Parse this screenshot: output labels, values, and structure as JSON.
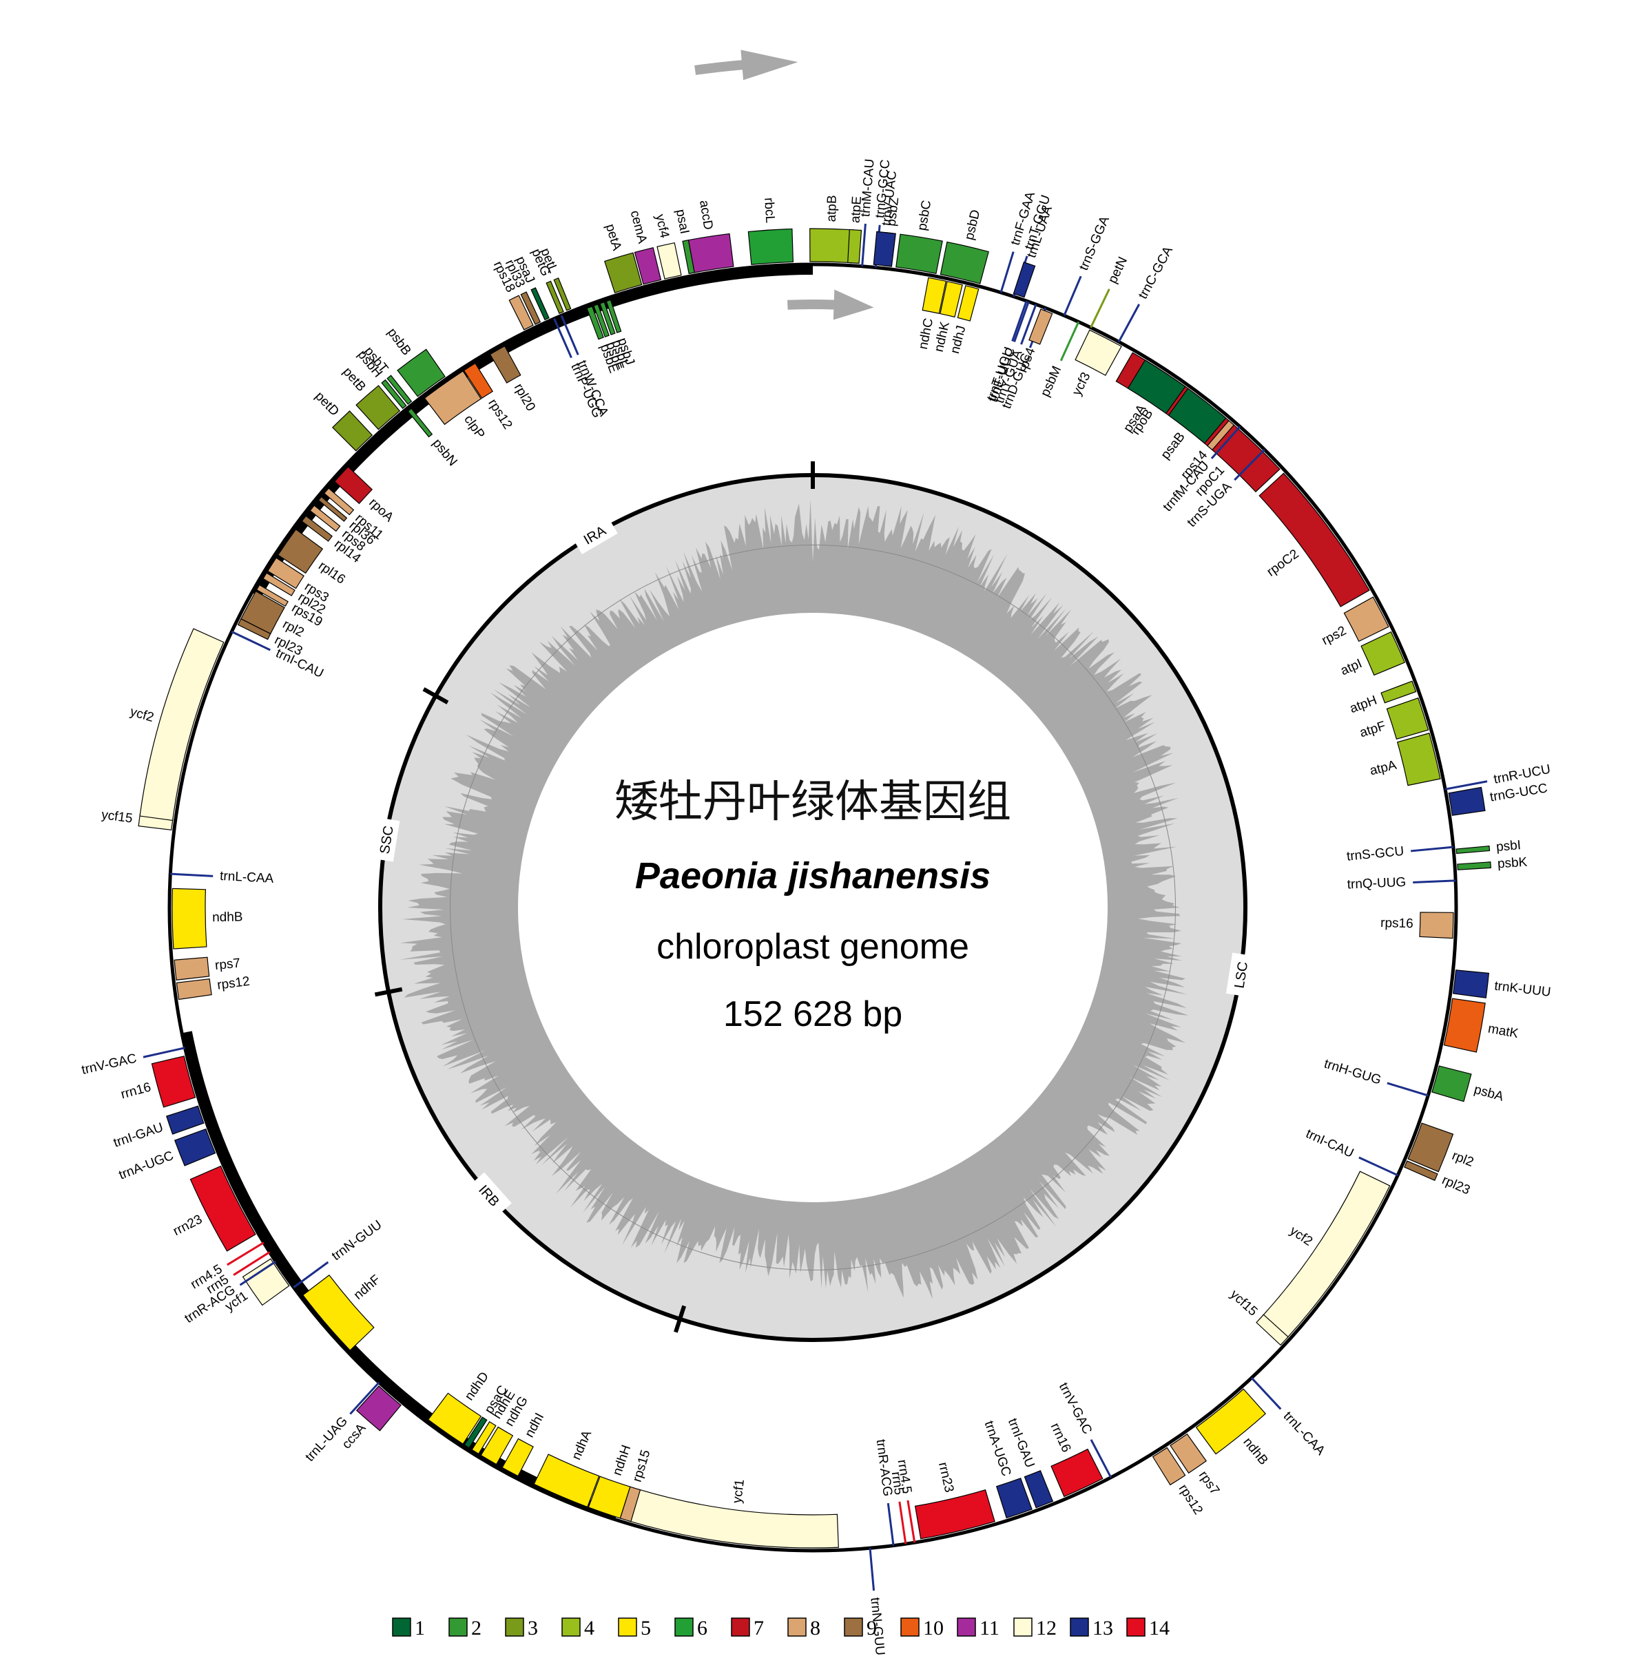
{
  "title": {
    "chinese": "矮牡丹叶绿体基因组",
    "species": "Paeonia jishanensis",
    "subtitle": "chloroplast genome",
    "size": "152 628 bp"
  },
  "genome_length_bp": 152628,
  "colors": {
    "1": "#006633",
    "2": "#339933",
    "3": "#7a9a1a",
    "4": "#99bf1c",
    "5": "#ffe600",
    "6": "#22a035",
    "7": "#c0141e",
    "8": "#dba572",
    "9": "#9c7040",
    "10": "#eb5d12",
    "11": "#a52b9c",
    "12": "#fffbd6",
    "13": "#1c2f8a",
    "14": "#e30d1f"
  },
  "legend": [
    "1",
    "2",
    "3",
    "4",
    "5",
    "6",
    "7",
    "8",
    "9",
    "10",
    "11",
    "12",
    "13",
    "14"
  ],
  "regions": [
    {
      "label": "LSC",
      "start": 0,
      "end": 83900
    },
    {
      "label": "IRB",
      "start": 83900,
      "end": 109700
    },
    {
      "label": "SSC",
      "start": 109700,
      "end": 126900
    },
    {
      "label": "IRA",
      "start": 126900,
      "end": 152628
    }
  ],
  "genes": [
    {
      "name": "trnG-GCC",
      "a": 5.6,
      "span": 0.3,
      "cat": "13",
      "strand": "out",
      "lbl": true
    },
    {
      "name": "psbZ",
      "a": 6.6,
      "span": 0.8,
      "cat": "2",
      "strand": "out",
      "lbl": true
    },
    {
      "name": "psbC",
      "a": 9.2,
      "span": 3.6,
      "cat": "2",
      "strand": "out"
    },
    {
      "name": "psbD",
      "a": 13.2,
      "span": 3.6,
      "cat": "2",
      "strand": "out"
    },
    {
      "name": "trnT-GGU",
      "a": 18.2,
      "span": 0.3,
      "cat": "13",
      "strand": "out",
      "lbl": true
    },
    {
      "name": "petN",
      "a": 25.6,
      "span": 0.3,
      "cat": "3",
      "strand": "out",
      "lbl": true
    },
    {
      "name": "trnC-GCA",
      "a": 28.4,
      "span": 0.3,
      "cat": "13",
      "strand": "out",
      "lbl": true
    },
    {
      "name": "trnE-UUC",
      "a": 19.6,
      "span": 0.3,
      "cat": "13",
      "strand": "in",
      "lbl": true
    },
    {
      "name": "trnY-GUA",
      "a": 20.3,
      "span": 0.3,
      "cat": "13",
      "strand": "in",
      "lbl": true
    },
    {
      "name": "trnD-GUC",
      "a": 21.2,
      "span": 0.3,
      "cat": "13",
      "strand": "in",
      "lbl": true
    },
    {
      "name": "psbM",
      "a": 24.4,
      "span": 0.3,
      "cat": "2",
      "strand": "in",
      "lbl": true
    },
    {
      "name": "rpoB",
      "a": 34.2,
      "span": 8.5,
      "cat": "7",
      "strand": "in"
    },
    {
      "name": "rpoC1",
      "a": 43.0,
      "span": 7.6,
      "cat": "7",
      "strand": "in"
    },
    {
      "name": "rpoC2",
      "a": 53.8,
      "span": 13.0,
      "cat": "7",
      "strand": "in"
    },
    {
      "name": "rps2",
      "a": 62.5,
      "span": 3.0,
      "cat": "8",
      "strand": "in"
    },
    {
      "name": "atpI",
      "a": 66.0,
      "span": 3.0,
      "cat": "4",
      "strand": "in"
    },
    {
      "name": "atpH",
      "a": 69.8,
      "span": 1.0,
      "cat": "4",
      "strand": "in"
    },
    {
      "name": "atpF",
      "a": 72.4,
      "span": 3.0,
      "cat": "4",
      "strand": "in"
    },
    {
      "name": "atpA",
      "a": 76.3,
      "span": 4.2,
      "cat": "4",
      "strand": "in"
    },
    {
      "name": "trnR-UCU",
      "a": 79.4,
      "span": 0.3,
      "cat": "13",
      "strand": "out",
      "lbl": true
    },
    {
      "name": "trnG-UCC",
      "a": 80.8,
      "span": 2.0,
      "cat": "13",
      "strand": "out"
    },
    {
      "name": "trnS-GCU",
      "a": 84.6,
      "span": 0.3,
      "cat": "13",
      "strand": "in",
      "lbl": true
    },
    {
      "name": "psbI",
      "a": 85.0,
      "span": 0.4,
      "cat": "2",
      "strand": "out",
      "lbl": true
    },
    {
      "name": "psbK",
      "a": 86.4,
      "span": 0.5,
      "cat": "2",
      "strand": "out",
      "lbl": true
    },
    {
      "name": "trnQ-UUG",
      "a": 87.6,
      "span": 0.3,
      "cat": "13",
      "strand": "in",
      "lbl": true
    },
    {
      "name": "rps16",
      "a": 91.6,
      "span": 2.3,
      "cat": "8",
      "strand": "in"
    },
    {
      "name": "trnK-UUU",
      "a": 96.6,
      "span": 2.1,
      "cat": "13",
      "strand": "out",
      "lbl": true
    },
    {
      "name": "matK",
      "a": 100.2,
      "span": 4.2,
      "cat": "10",
      "strand": "out",
      "lbl": true
    },
    {
      "name": "psbA",
      "a": 105.4,
      "span": 2.4,
      "cat": "2",
      "strand": "out"
    },
    {
      "name": "trnH-GUG",
      "a": 107.0,
      "span": 0.3,
      "cat": "13",
      "strand": "in",
      "lbl": true
    },
    {
      "name": "rpl2",
      "a": 111.2,
      "span": 3.4,
      "cat": "9",
      "strand": "out"
    },
    {
      "name": "rpl23",
      "a": 113.4,
      "span": 0.6,
      "cat": "9",
      "strand": "out",
      "lbl": true
    },
    {
      "name": "trnI-CAU",
      "a": 114.6,
      "span": 0.3,
      "cat": "13",
      "strand": "in",
      "lbl": true
    },
    {
      "name": "ycf2",
      "a": 124.0,
      "span": 16.5,
      "cat": "12",
      "strand": "in"
    },
    {
      "name": "ycf15",
      "a": 132.6,
      "span": 1.0,
      "cat": "12",
      "strand": "in"
    },
    {
      "name": "trnL-CAA",
      "a": 137.0,
      "span": 0.3,
      "cat": "13",
      "strand": "out",
      "lbl": true
    },
    {
      "name": "ndhB",
      "a": 140.9,
      "span": 5.4,
      "cat": "5",
      "strand": "out"
    },
    {
      "name": "rps7",
      "a": 145.5,
      "span": 1.8,
      "cat": "8",
      "strand": "out"
    },
    {
      "name": "rps12",
      "a": 147.5,
      "span": 1.5,
      "cat": "8",
      "strand": "out"
    },
    {
      "name": "trnV-GAC",
      "a": 152.4,
      "span": 0.3,
      "cat": "13",
      "strand": "in",
      "lbl": true
    },
    {
      "name": "rrn16",
      "a": 155.0,
      "span": 3.8,
      "cat": "14",
      "strand": "in"
    },
    {
      "name": "trnI-GAU",
      "a": 158.8,
      "span": 1.6,
      "cat": "13",
      "strand": "in"
    },
    {
      "name": "trnA-UGC",
      "a": 161.2,
      "span": 2.4,
      "cat": "13",
      "strand": "in"
    },
    {
      "name": "rrn23",
      "a": 166.9,
      "span": 6.8,
      "cat": "14",
      "strand": "in"
    },
    {
      "name": "rrn4.5",
      "a": 170.9,
      "span": 0.3,
      "cat": "14",
      "strand": "in",
      "lbl": true
    },
    {
      "name": "rrn5",
      "a": 171.7,
      "span": 0.3,
      "cat": "14",
      "strand": "in",
      "lbl": true
    },
    {
      "name": "trnR-ACG",
      "a": 172.8,
      "span": 0.3,
      "cat": "13",
      "strand": "in",
      "lbl": true
    },
    {
      "name": "trnN-GUU",
      "a": 174.9,
      "span": 0.3,
      "cat": "13",
      "strand": "out",
      "lbl": true
    },
    {
      "name": "ycf1",
      "a": 187.2,
      "span": 19.0,
      "cat": "12",
      "strand": "in"
    },
    {
      "name": "rps15",
      "a": 197.0,
      "span": 1.0,
      "cat": "8",
      "strand": "in"
    },
    {
      "name": "ndhH",
      "a": 199.0,
      "span": 3.0,
      "cat": "5",
      "strand": "in"
    },
    {
      "name": "ndhA",
      "a": 203.2,
      "span": 5.2,
      "cat": "5",
      "strand": "in"
    },
    {
      "name": "ndhI",
      "a": 208.2,
      "span": 1.6,
      "cat": "5",
      "strand": "in"
    },
    {
      "name": "ndhG",
      "a": 210.4,
      "span": 1.6,
      "cat": "5",
      "strand": "in"
    },
    {
      "name": "ndhE",
      "a": 211.8,
      "span": 0.7,
      "cat": "5",
      "strand": "in"
    },
    {
      "name": "psaC",
      "a": 212.7,
      "span": 0.5,
      "cat": "1",
      "strand": "in"
    },
    {
      "name": "ndhD",
      "a": 215.0,
      "span": 3.8,
      "cat": "5",
      "strand": "in"
    },
    {
      "name": "ccsA",
      "a": 220.9,
      "span": 2.6,
      "cat": "11",
      "strand": "out"
    },
    {
      "name": "trnL-UAG",
      "a": 222.4,
      "span": 0.3,
      "cat": "13",
      "strand": "out",
      "lbl": true
    },
    {
      "name": "ndhF",
      "a": 229.5,
      "span": 6.5,
      "cat": "5",
      "strand": "in"
    },
    {
      "name": "trnN-GUU",
      "a": 233.8,
      "span": 0.3,
      "cat": "13",
      "strand": "in",
      "lbl": true
    },
    {
      "name": "ycf1",
      "a": 235.6,
      "span": 2.9,
      "cat": "12",
      "strand": "out"
    },
    {
      "name": "trnR-ACG",
      "a": 236.6,
      "span": 0.3,
      "cat": "13",
      "strand": "out",
      "lbl": true
    },
    {
      "name": "rrn5",
      "a": 237.6,
      "span": 0.3,
      "cat": "14",
      "strand": "out",
      "lbl": true
    },
    {
      "name": "rrn4.5",
      "a": 238.6,
      "span": 0.3,
      "cat": "14",
      "strand": "out",
      "lbl": true
    },
    {
      "name": "rrn23",
      "a": 243.0,
      "span": 6.8,
      "cat": "14",
      "strand": "out"
    },
    {
      "name": "trnA-UGC",
      "a": 248.8,
      "span": 2.3,
      "cat": "13",
      "strand": "out"
    },
    {
      "name": "trnI-GAU",
      "a": 251.3,
      "span": 1.6,
      "cat": "13",
      "strand": "out"
    },
    {
      "name": "rrn16",
      "a": 254.8,
      "span": 3.8,
      "cat": "14",
      "strand": "out"
    },
    {
      "name": "trnV-GAC",
      "a": 257.4,
      "span": 0.3,
      "cat": "13",
      "strand": "out",
      "lbl": true
    },
    {
      "name": "rps12",
      "a": 262.5,
      "span": 1.5,
      "cat": "8",
      "strand": "in"
    },
    {
      "name": "rps7",
      "a": 264.4,
      "span": 1.8,
      "cat": "8",
      "strand": "in"
    },
    {
      "name": "ndhB",
      "a": 269.0,
      "span": 5.4,
      "cat": "5",
      "strand": "in"
    },
    {
      "name": "trnL-CAA",
      "a": 273.0,
      "span": 0.3,
      "cat": "13",
      "strand": "in",
      "lbl": true
    },
    {
      "name": "ycf15",
      "a": 277.4,
      "span": 1.0,
      "cat": "12",
      "strand": "out"
    },
    {
      "name": "ycf2",
      "a": 286.0,
      "span": 16.5,
      "cat": "12",
      "strand": "out"
    },
    {
      "name": "trnI-CAU",
      "a": 295.4,
      "span": 0.3,
      "cat": "13",
      "strand": "in",
      "lbl": true
    },
    {
      "name": "rpl23",
      "a": 296.5,
      "span": 0.6,
      "cat": "9",
      "strand": "in",
      "lbl": true
    },
    {
      "name": "rpl2",
      "a": 298.2,
      "span": 2.8,
      "cat": "9",
      "strand": "in",
      "lbl": true
    },
    {
      "name": "rps19",
      "a": 300.0,
      "span": 0.5,
      "cat": "8",
      "strand": "in",
      "lbl": true
    },
    {
      "name": "rpl22",
      "a": 301.2,
      "span": 0.6,
      "cat": "8",
      "strand": "in",
      "lbl": true
    },
    {
      "name": "rps3",
      "a": 302.4,
      "span": 1.4,
      "cat": "8",
      "strand": "in",
      "lbl": true
    },
    {
      "name": "rpl16",
      "a": 304.8,
      "span": 2.8,
      "cat": "9",
      "strand": "in"
    },
    {
      "name": "rpl14",
      "a": 307.4,
      "span": 0.6,
      "cat": "9",
      "strand": "in",
      "lbl": true
    },
    {
      "name": "rps8",
      "a": 308.6,
      "span": 0.6,
      "cat": "8",
      "strand": "in",
      "lbl": true
    },
    {
      "name": "rpl36",
      "a": 309.7,
      "span": 0.4,
      "cat": "9",
      "strand": "in",
      "lbl": true
    },
    {
      "name": "rps11",
      "a": 310.6,
      "span": 0.6,
      "cat": "8",
      "strand": "in",
      "lbl": true
    },
    {
      "name": "rpoA",
      "a": 312.6,
      "span": 1.8,
      "cat": "7",
      "strand": "in"
    },
    {
      "name": "petD",
      "a": 316.0,
      "span": 2.0,
      "cat": "3",
      "strand": "out"
    },
    {
      "name": "petB",
      "a": 319.0,
      "span": 2.5,
      "cat": "3",
      "strand": "out"
    },
    {
      "name": "psbH",
      "a": 320.8,
      "span": 0.4,
      "cat": "2",
      "strand": "out",
      "lbl": true
    },
    {
      "name": "psbT",
      "a": 321.4,
      "span": 0.4,
      "cat": "2",
      "strand": "out",
      "lbl": true
    },
    {
      "name": "psbB",
      "a": 323.8,
      "span": 3.0,
      "cat": "2",
      "strand": "out"
    },
    {
      "name": "psbN",
      "a": 321.0,
      "span": 0.4,
      "cat": "2",
      "strand": "in",
      "lbl": true
    },
    {
      "name": "clpP",
      "a": 324.8,
      "span": 4.2,
      "cat": "8",
      "strand": "in"
    },
    {
      "name": "rps12",
      "a": 327.6,
      "span": 1.2,
      "cat": "10",
      "strand": "in"
    },
    {
      "name": "rpl20",
      "a": 330.5,
      "span": 1.5,
      "cat": "9",
      "strand": "in"
    },
    {
      "name": "rps18",
      "a": 333.9,
      "span": 0.9,
      "cat": "8",
      "strand": "out",
      "lbl": true
    },
    {
      "name": "rpl33",
      "a": 334.8,
      "span": 0.5,
      "cat": "9",
      "strand": "out",
      "lbl": true
    },
    {
      "name": "psaJ",
      "a": 335.7,
      "span": 0.4,
      "cat": "1",
      "strand": "out",
      "lbl": true
    },
    {
      "name": "petG",
      "a": 337.1,
      "span": 0.4,
      "cat": "3",
      "strand": "out",
      "lbl": true
    },
    {
      "name": "petL",
      "a": 337.8,
      "span": 0.4,
      "cat": "3",
      "strand": "out",
      "lbl": true
    },
    {
      "name": "trnP-UGG",
      "a": 336.3,
      "span": 0.3,
      "cat": "13",
      "strand": "in",
      "lbl": true
    },
    {
      "name": "trnW-CCA",
      "a": 337.0,
      "span": 0.3,
      "cat": "13",
      "strand": "in",
      "lbl": true
    },
    {
      "name": "psbE",
      "a": 339.6,
      "span": 0.5,
      "cat": "2",
      "strand": "in",
      "lbl": true
    },
    {
      "name": "psbF",
      "a": 340.2,
      "span": 0.4,
      "cat": "2",
      "strand": "in",
      "lbl": true
    },
    {
      "name": "psbL",
      "a": 340.8,
      "span": 0.4,
      "cat": "2",
      "strand": "in",
      "lbl": true
    },
    {
      "name": "psbJ",
      "a": 341.4,
      "span": 0.4,
      "cat": "2",
      "strand": "in",
      "lbl": true
    },
    {
      "name": "petA",
      "a": 343.4,
      "span": 2.5,
      "cat": "3",
      "strand": "out"
    },
    {
      "name": "cemA",
      "a": 345.6,
      "span": 1.6,
      "cat": "11",
      "strand": "out"
    },
    {
      "name": "ycf4",
      "a": 347.5,
      "span": 1.5,
      "cat": "12",
      "strand": "out"
    },
    {
      "name": "psaI",
      "a": 349.2,
      "span": 0.5,
      "cat": "2",
      "strand": "out",
      "lbl": true
    },
    {
      "name": "accD",
      "a": 351.2,
      "span": 3.5,
      "cat": "11",
      "strand": "out"
    },
    {
      "name": "rbcL",
      "a": 356.4,
      "span": 3.7,
      "cat": "6",
      "strand": "out"
    },
    {
      "name": "atpB",
      "a": 1.6,
      "span": 3.7,
      "cat": "4",
      "strand": "out"
    },
    {
      "name": "atpE",
      "a": 3.6,
      "span": 1.0,
      "cat": "4",
      "strand": "out"
    },
    {
      "name": "trnM-CAU",
      "a": 4.4,
      "span": 0.3,
      "cat": "13",
      "strand": "out",
      "lbl": true
    },
    {
      "name": "trnV-UAC",
      "a": 6.2,
      "span": 1.6,
      "cat": "13",
      "strand": "out"
    },
    {
      "name": "ndhC",
      "a": 11.2,
      "span": 1.6,
      "cat": "5",
      "strand": "in"
    },
    {
      "name": "ndhK",
      "a": 12.8,
      "span": 1.4,
      "cat": "5",
      "strand": "in"
    },
    {
      "name": "ndhJ",
      "a": 14.4,
      "span": 1.2,
      "cat": "5",
      "strand": "in"
    },
    {
      "name": "trnF-GAA",
      "a": 17.0,
      "span": 0.3,
      "cat": "13",
      "strand": "out",
      "lbl": true
    },
    {
      "name": "trnL-UAA",
      "a": 18.6,
      "span": 1.0,
      "cat": "13",
      "strand": "out"
    },
    {
      "name": "trnT-UGU",
      "a": 19.4,
      "span": 0.3,
      "cat": "13",
      "strand": "in",
      "lbl": true
    },
    {
      "name": "rps4",
      "a": 21.4,
      "span": 1.1,
      "cat": "8",
      "strand": "in"
    },
    {
      "name": "trnS-GGA",
      "a": 23.0,
      "span": 0.3,
      "cat": "13",
      "strand": "out",
      "lbl": true
    },
    {
      "name": "ycf3",
      "a": 27.2,
      "span": 3.2,
      "cat": "12",
      "strand": "in"
    },
    {
      "name": "psaA",
      "a": 33.4,
      "span": 4.3,
      "cat": "1",
      "strand": "in"
    },
    {
      "name": "psaB",
      "a": 38.0,
      "span": 4.3,
      "cat": "1",
      "strand": "in"
    },
    {
      "name": "rps14",
      "a": 40.8,
      "span": 0.6,
      "cat": "8",
      "strand": "in",
      "lbl": true
    },
    {
      "name": "trnfM-CAU",
      "a": 41.6,
      "span": 0.3,
      "cat": "13",
      "strand": "in",
      "lbl": true
    },
    {
      "name": "trnS-UGA",
      "a": 44.6,
      "span": 0.3,
      "cat": "13",
      "strand": "in",
      "lbl": true
    }
  ]
}
